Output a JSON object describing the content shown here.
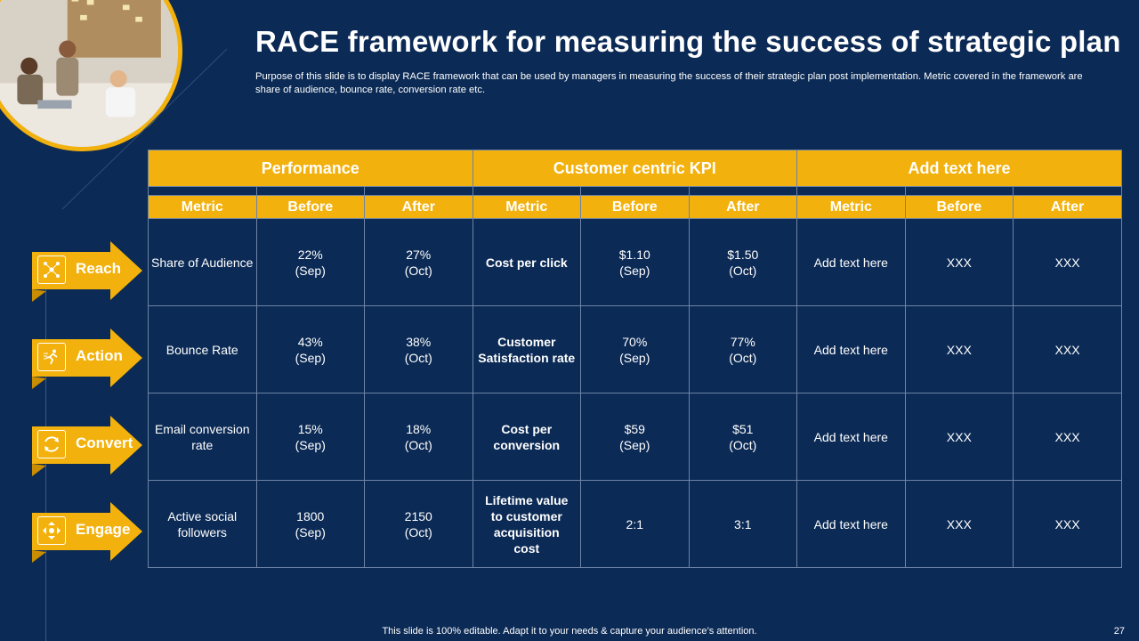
{
  "title": "RACE framework for measuring the success of strategic plan",
  "subtitle": "Purpose of this slide is to display RACE framework that can be used by managers in measuring the success of their strategic plan post implementation. Metric covered in the framework are share of audience, bounce rate, conversion rate etc.",
  "colors": {
    "background": "#0b2a55",
    "accent": "#f2b10c",
    "grid": "#6d84a6"
  },
  "table": {
    "groups": [
      "Performance",
      "Customer centric KPI",
      "Add text here"
    ],
    "columns": [
      "Metric",
      "Before",
      "After",
      "Metric",
      "Before",
      "After",
      "Metric",
      "Before",
      "After"
    ],
    "rows": [
      [
        "Share of Audience",
        "22%\n(Sep)",
        "27%\n(Oct)",
        "Cost per click",
        "$1.10\n(Sep)",
        "$1.50\n(Oct)",
        "Add text here",
        "XXX",
        "XXX"
      ],
      [
        "Bounce Rate",
        "43%\n(Sep)",
        "38%\n(Oct)",
        "Customer Satisfaction rate",
        "70%\n(Sep)",
        "77%\n(Oct)",
        "Add text here",
        "XXX",
        "XXX"
      ],
      [
        "Email conversion rate",
        "15%\n(Sep)",
        "18%\n(Oct)",
        "Cost per conversion",
        "$59\n(Sep)",
        "$51\n(Oct)",
        "Add text here",
        "XXX",
        "XXX"
      ],
      [
        "Active social followers",
        "1800\n(Sep)",
        "2150\n(Oct)",
        "Lifetime value to customer acquisition cost",
        "2:1",
        "3:1",
        "Add text here",
        "XXX",
        "XXX"
      ]
    ]
  },
  "stages": [
    {
      "label": "Reach",
      "icon": "network-icon"
    },
    {
      "label": "Action",
      "icon": "runner-icon"
    },
    {
      "label": "Convert",
      "icon": "cycle-icon"
    },
    {
      "label": "Engage",
      "icon": "engage-arrows-icon"
    }
  ],
  "footer": "This slide is 100% editable. Adapt it to your needs & capture your audience’s attention.",
  "page_number": "27"
}
